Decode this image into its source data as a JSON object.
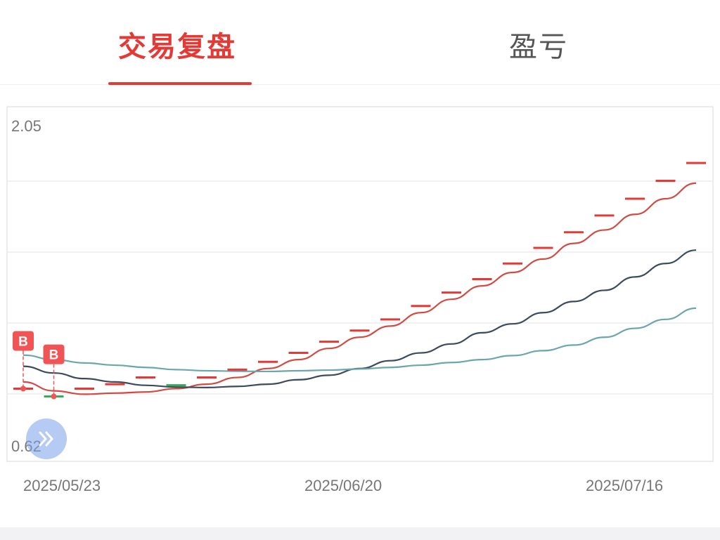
{
  "tabs": [
    {
      "label": "交易复盘",
      "active": true
    },
    {
      "label": "盈亏",
      "active": false
    }
  ],
  "colors": {
    "accent": "#e53935",
    "line_price": "#d14b43",
    "line_dark": "#3b4a5c",
    "line_teal": "#6ba6ad",
    "marker_red": "#e53935",
    "marker_green": "#34a853",
    "buy_badge": "#f05454"
  },
  "chart_data": {
    "type": "line",
    "title": "",
    "xlabel": "",
    "ylabel": "",
    "ylim": [
      0.62,
      2.05
    ],
    "y_tick_labels": [
      "2.05",
      "0.62"
    ],
    "x_tick_labels": [
      "2025/05/23",
      "2025/06/20",
      "2025/07/16"
    ],
    "x_range": [
      0,
      22
    ],
    "grid": true,
    "series": [
      {
        "color_key": "line_price",
        "x": [
          0,
          1,
          2,
          3,
          4,
          5,
          6,
          7,
          8,
          9,
          10,
          11,
          12,
          13,
          14,
          15,
          16,
          17,
          18,
          19,
          20,
          21,
          22
        ],
        "values": [
          0.9,
          0.86,
          0.845,
          0.85,
          0.855,
          0.87,
          0.89,
          0.92,
          0.96,
          1.0,
          1.05,
          1.1,
          1.15,
          1.21,
          1.27,
          1.33,
          1.39,
          1.45,
          1.52,
          1.58,
          1.65,
          1.72,
          1.79
        ]
      },
      {
        "color_key": "line_dark",
        "x": [
          0,
          1,
          2,
          3,
          4,
          5,
          6,
          7,
          8,
          9,
          10,
          11,
          12,
          13,
          14,
          15,
          16,
          17,
          18,
          19,
          20,
          21,
          22
        ],
        "values": [
          0.97,
          0.94,
          0.915,
          0.9,
          0.885,
          0.877,
          0.875,
          0.88,
          0.89,
          0.91,
          0.93,
          0.96,
          0.995,
          1.03,
          1.07,
          1.12,
          1.16,
          1.21,
          1.26,
          1.31,
          1.37,
          1.43,
          1.49
        ]
      },
      {
        "color_key": "line_teal",
        "x": [
          0,
          1,
          2,
          3,
          4,
          5,
          6,
          7,
          8,
          9,
          10,
          11,
          12,
          13,
          14,
          15,
          16,
          17,
          18,
          19,
          20,
          21,
          22
        ],
        "values": [
          1.02,
          1.0,
          0.985,
          0.975,
          0.965,
          0.955,
          0.95,
          0.948,
          0.947,
          0.95,
          0.953,
          0.958,
          0.965,
          0.975,
          0.987,
          1.0,
          1.018,
          1.04,
          1.065,
          1.1,
          1.14,
          1.18,
          1.23
        ]
      }
    ],
    "step_markers": [
      {
        "x": 0.0,
        "y": 0.87,
        "color_key": "marker_red"
      },
      {
        "x": 1.0,
        "y": 0.835,
        "color_key": "marker_green"
      },
      {
        "x": 2.0,
        "y": 0.87,
        "color_key": "marker_red"
      },
      {
        "x": 3.0,
        "y": 0.89,
        "color_key": "marker_red"
      },
      {
        "x": 4.0,
        "y": 0.92,
        "color_key": "marker_red"
      },
      {
        "x": 5.0,
        "y": 0.885,
        "color_key": "marker_green"
      },
      {
        "x": 6.0,
        "y": 0.92,
        "color_key": "marker_red"
      },
      {
        "x": 7.0,
        "y": 0.955,
        "color_key": "marker_red"
      },
      {
        "x": 8.0,
        "y": 0.99,
        "color_key": "marker_red"
      },
      {
        "x": 9.0,
        "y": 1.03,
        "color_key": "marker_red"
      },
      {
        "x": 10.0,
        "y": 1.08,
        "color_key": "marker_red"
      },
      {
        "x": 11.0,
        "y": 1.13,
        "color_key": "marker_red"
      },
      {
        "x": 12.0,
        "y": 1.18,
        "color_key": "marker_red"
      },
      {
        "x": 13.0,
        "y": 1.24,
        "color_key": "marker_red"
      },
      {
        "x": 14.0,
        "y": 1.3,
        "color_key": "marker_red"
      },
      {
        "x": 15.0,
        "y": 1.36,
        "color_key": "marker_red"
      },
      {
        "x": 16.0,
        "y": 1.43,
        "color_key": "marker_red"
      },
      {
        "x": 17.0,
        "y": 1.5,
        "color_key": "marker_red"
      },
      {
        "x": 18.0,
        "y": 1.57,
        "color_key": "marker_red"
      },
      {
        "x": 19.0,
        "y": 1.645,
        "color_key": "marker_red"
      },
      {
        "x": 20.0,
        "y": 1.72,
        "color_key": "marker_red"
      },
      {
        "x": 21.0,
        "y": 1.8,
        "color_key": "marker_red"
      },
      {
        "x": 22.0,
        "y": 1.88,
        "color_key": "marker_red"
      }
    ],
    "buy_signals": [
      {
        "label": "B",
        "x": 0.0,
        "y": 0.87
      },
      {
        "label": "B",
        "x": 1.0,
        "y": 0.835
      }
    ]
  },
  "fab": {
    "icon": "double-chevron-right-icon"
  }
}
